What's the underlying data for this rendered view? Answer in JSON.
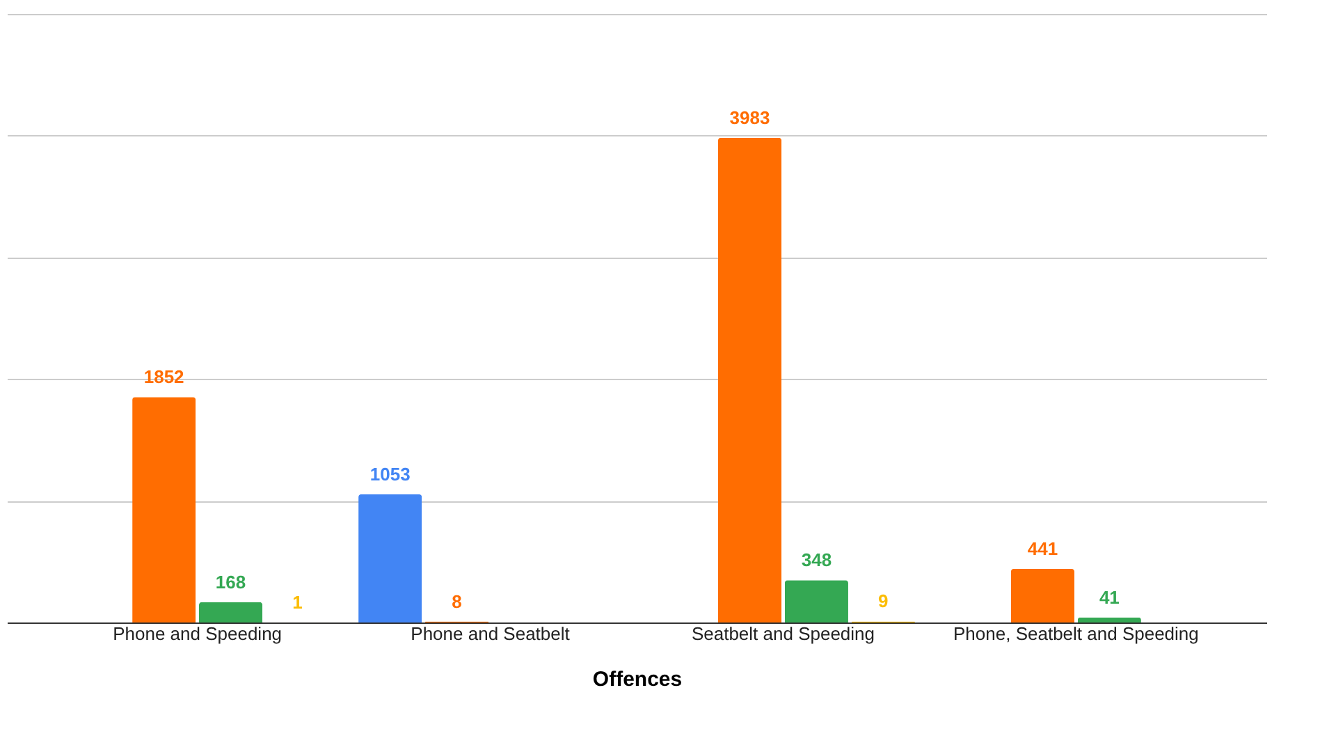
{
  "chart_data": {
    "type": "bar",
    "xlabel": "Offences",
    "categories": [
      "Phone and Speeding",
      "Phone and Seatbelt",
      "Seatbelt and Speeding",
      "Phone, Seatbelt and Speeding"
    ],
    "series": [
      {
        "color": "#4285f4",
        "values": [
          null,
          1053,
          null,
          null
        ]
      },
      {
        "color": "#ff6d01",
        "values": [
          1852,
          8,
          3983,
          441
        ]
      },
      {
        "color": "#34a853",
        "values": [
          168,
          null,
          348,
          41
        ]
      },
      {
        "color": "#fbbc04",
        "values": [
          1,
          null,
          9,
          null
        ]
      }
    ],
    "ylim": [
      0,
      5000
    ],
    "yticks": [
      {
        "value": 0,
        "label": null
      },
      {
        "value": 1000,
        "label": null
      },
      {
        "value": 2000,
        "label": null
      },
      {
        "value": 3000,
        "label": null
      },
      {
        "value": 4000,
        "label": null
      },
      {
        "value": 5000,
        "label": null
      }
    ],
    "tick_labels": "x",
    "grid": "y",
    "data_labels": true
  }
}
